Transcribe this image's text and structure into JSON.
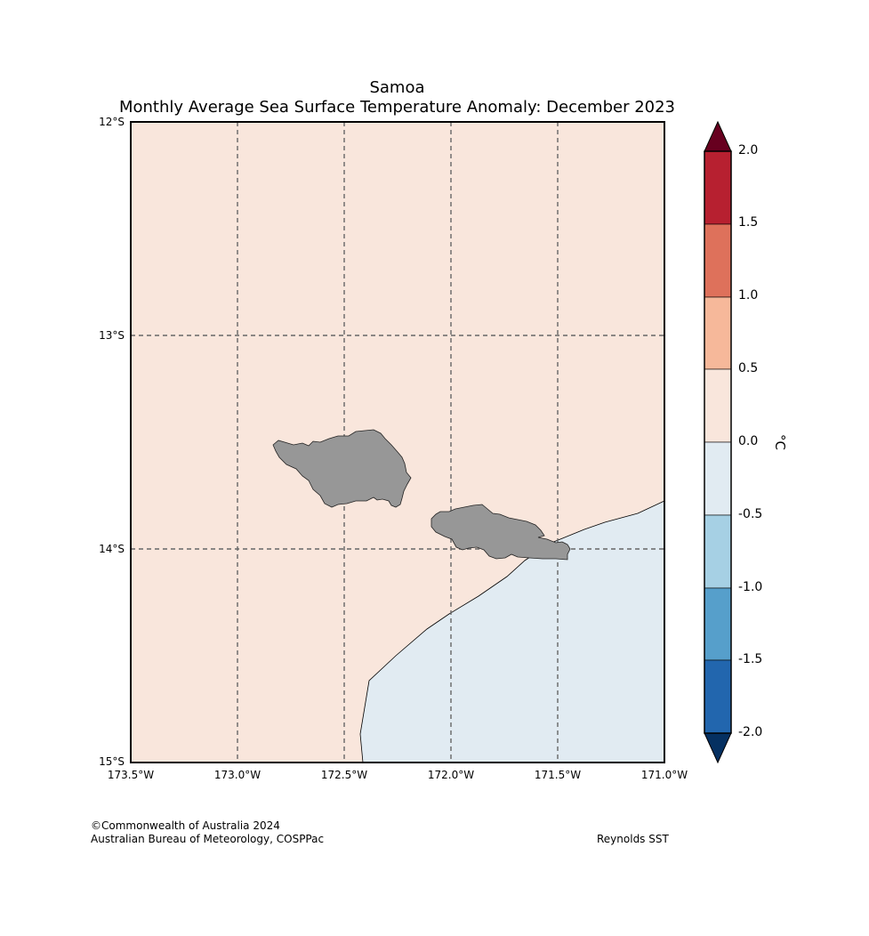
{
  "title": "Samoa",
  "subtitle": "Monthly Average Sea Surface Temperature Anomaly: December 2023",
  "lat_labels": [
    "12°S",
    "13°S",
    "14°S",
    "15°S"
  ],
  "lon_labels": [
    "173.5°W",
    "173.0°W",
    "172.5°W",
    "172.0°W",
    "171.5°W",
    "171.0°W"
  ],
  "colorbar": {
    "unit": "°C",
    "ticks": [
      "2.0",
      "1.5",
      "1.0",
      "0.5",
      "0.0",
      "-0.5",
      "-1.0",
      "-1.5",
      "-2.0"
    ],
    "colors": [
      "#b72030",
      "#de715b",
      "#f6b89a",
      "#f9e6dc",
      "#e1ebf2",
      "#a6d0e4",
      "#569fcb",
      "#2266ae"
    ],
    "over_color": "#67001f",
    "under_color": "#053061"
  },
  "fill_colors": {
    "warm_anomaly": "#f9e6dc",
    "cool_anomaly": "#e1ebf2",
    "land": "#979797"
  },
  "footer": {
    "copyright": "©Commonwealth of Australia 2024",
    "agency": "Australian Bureau of Meteorology, COSPPac",
    "source": "Reynolds SST"
  }
}
